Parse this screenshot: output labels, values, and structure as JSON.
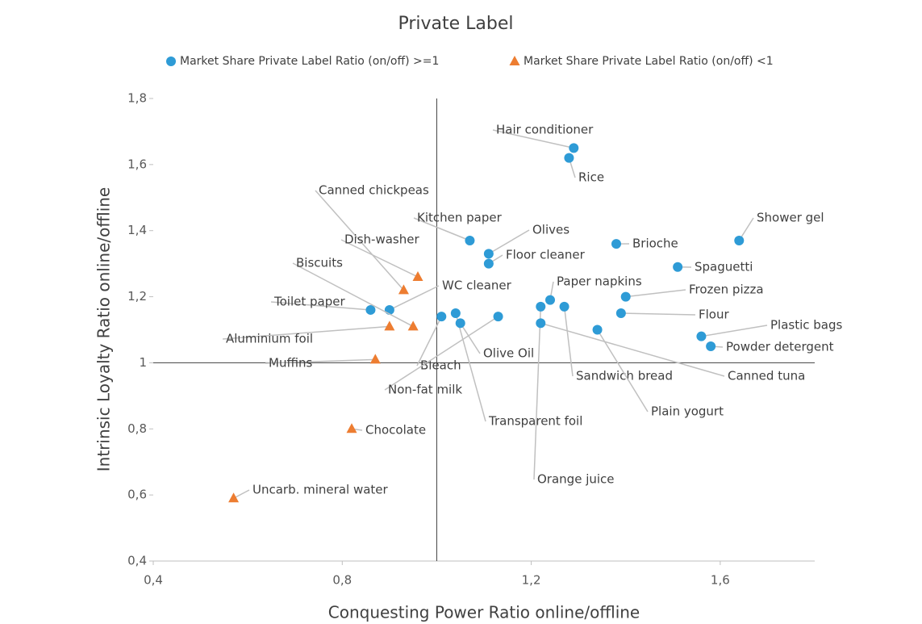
{
  "chart_data": {
    "type": "scatter",
    "title": "Private Label",
    "x_label": "Conquesting Power Ratio online/offline",
    "y_label": "Intrinsic Loyalty Ratio online/offline",
    "xlim": [
      0.4,
      1.8
    ],
    "ylim": [
      0.4,
      1.8
    ],
    "xticks": [
      {
        "value": 0.4,
        "label": "0,4"
      },
      {
        "value": 0.8,
        "label": "0,8"
      },
      {
        "value": 1.2,
        "label": "1,2"
      },
      {
        "value": 1.6,
        "label": "1,6"
      }
    ],
    "yticks": [
      {
        "value": 0.4,
        "label": "0,4"
      },
      {
        "value": 0.6,
        "label": "0,6"
      },
      {
        "value": 0.8,
        "label": "0,8"
      },
      1,
      {
        "value": 1.2,
        "label": "1,2"
      },
      {
        "value": 1.4,
        "label": "1,4"
      },
      {
        "value": 1.6,
        "label": "1,6"
      },
      {
        "value": 1.8,
        "label": "1,8"
      }
    ],
    "x_ref": 1,
    "y_ref": 1,
    "legend": "top",
    "series": [
      {
        "name": "Market Share Private Label Ratio (on/off) >=1",
        "color": "#2e9bd6",
        "marker": "circle",
        "labels": [
          "Hair conditioner",
          "Rice",
          "Kitchen paper",
          "Olives",
          "Floor cleaner",
          "Shower gel",
          "Brioche",
          "Spaguetti",
          "Frozen pizza",
          "Paper napkins",
          "Flour",
          "Plastic bags",
          "Powder detergent",
          "Canned tuna",
          "Sandwich bread",
          "Plain yogurt",
          "Transparent foil",
          "Orange juice",
          "Olive Oil",
          "Bleach",
          "Non-fat milk",
          "WC cleaner",
          "Toilet paper"
        ],
        "x": [
          1.29,
          1.28,
          1.07,
          1.11,
          1.11,
          1.64,
          1.38,
          1.51,
          1.4,
          1.24,
          1.39,
          1.56,
          1.58,
          1.22,
          1.27,
          1.34,
          1.04,
          1.22,
          1.05,
          1.01,
          1.13,
          0.9,
          0.86
        ],
        "values": [
          1.65,
          1.62,
          1.37,
          1.33,
          1.3,
          1.37,
          1.36,
          1.29,
          1.2,
          1.19,
          1.15,
          1.08,
          1.05,
          1.12,
          1.17,
          1.1,
          1.15,
          1.17,
          1.12,
          1.14,
          1.14,
          1.16,
          1.16
        ]
      },
      {
        "name": "Market Share Private Label Ratio (on/off) <1",
        "color": "#ed7d31",
        "marker": "triangle",
        "labels": [
          "Canned chickpeas",
          "Dish-washer",
          "Biscuits",
          "Aluminium foil",
          "Muffins",
          "Chocolate",
          "Uncarb. mineral water"
        ],
        "x": [
          0.93,
          0.96,
          0.95,
          0.9,
          0.87,
          0.82,
          0.57
        ],
        "values": [
          1.22,
          1.26,
          1.11,
          1.11,
          1.01,
          0.8,
          0.59
        ]
      }
    ]
  }
}
